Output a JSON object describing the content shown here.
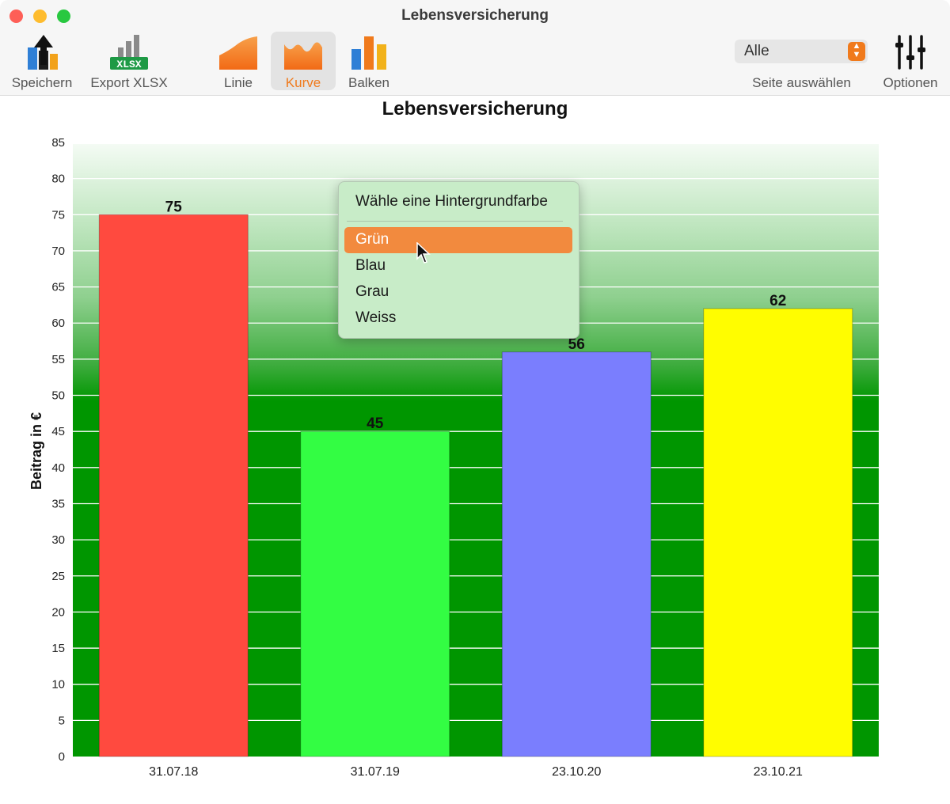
{
  "window": {
    "title": "Lebensversicherung"
  },
  "toolbar": {
    "save_label": "Speichern",
    "export_label": "Export XLSX",
    "export_badge": "XLSX",
    "line_label": "Linie",
    "curve_label": "Kurve",
    "bars_label": "Balken",
    "page_select": {
      "value": "Alle",
      "caption": "Seite auswählen"
    },
    "options_label": "Optionen",
    "active_tab": "Kurve"
  },
  "chart_data": {
    "type": "bar",
    "title": "Lebensversicherung",
    "xlabel": "",
    "ylabel": "Beitrag in €",
    "categories": [
      "31.07.18",
      "31.07.19",
      "23.10.20",
      "23.10.21"
    ],
    "values": [
      75,
      45,
      56,
      62
    ],
    "bar_colors": [
      "#ff4a3f",
      "#33fd43",
      "#7a7efe",
      "#fffd00"
    ],
    "ylim": [
      0,
      85
    ],
    "yticks": [
      0,
      5,
      10,
      15,
      20,
      25,
      30,
      35,
      40,
      45,
      50,
      55,
      60,
      65,
      70,
      75,
      80,
      85
    ],
    "grid": true,
    "data_labels": true,
    "background": "green gradient"
  },
  "context_menu": {
    "header": "Wähle eine Hintergrundfarbe",
    "items": [
      "Grün",
      "Blau",
      "Grau",
      "Weiss"
    ],
    "selected": "Grün"
  },
  "colors": {
    "accent": "#f07a1c",
    "menu_bg": "#c8ecc8",
    "menu_highlight": "#f28a3e",
    "plot_green": "#009600"
  }
}
